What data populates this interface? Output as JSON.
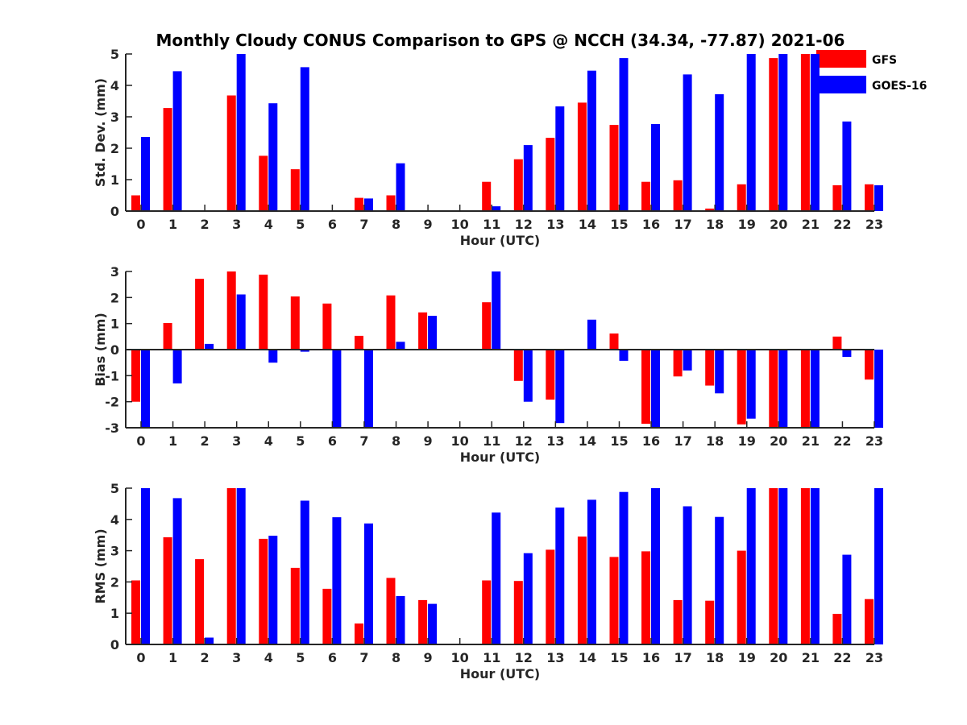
{
  "title": "Monthly Cloudy CONUS Comparison to GPS @ NCCH (34.34, -77.87) 2021-06",
  "legend": [
    {
      "name": "GFS",
      "color": "#ff0000"
    },
    {
      "name": "GOES-16",
      "color": "#0000ff"
    }
  ],
  "chart_data": [
    {
      "type": "bar",
      "ylabel": "Std. Dev. (mm)",
      "xlabel": "Hour (UTC)",
      "ylim": [
        0,
        5
      ],
      "yticks": [
        "0",
        "1",
        "2",
        "3",
        "4",
        "5"
      ],
      "categories": [
        "0",
        "1",
        "2",
        "3",
        "4",
        "5",
        "6",
        "7",
        "8",
        "9",
        "10",
        "11",
        "12",
        "13",
        "14",
        "15",
        "16",
        "17",
        "18",
        "19",
        "20",
        "21",
        "22",
        "23"
      ],
      "series": [
        {
          "name": "GFS",
          "values": [
            0.5,
            3.28,
            null,
            3.68,
            1.76,
            1.33,
            null,
            0.42,
            0.5,
            null,
            null,
            0.93,
            1.65,
            2.33,
            3.45,
            2.74,
            0.93,
            0.98,
            0.08,
            0.85,
            4.87,
            5.0,
            0.82,
            0.85
          ]
        },
        {
          "name": "GOES-16",
          "values": [
            2.36,
            4.45,
            null,
            5.0,
            3.43,
            4.58,
            null,
            0.4,
            1.52,
            null,
            null,
            0.15,
            2.1,
            3.33,
            4.47,
            4.87,
            2.77,
            4.35,
            3.72,
            5.0,
            5.0,
            5.0,
            2.85,
            0.82
          ]
        }
      ]
    },
    {
      "type": "bar",
      "ylabel": "Bias (mm)",
      "xlabel": "Hour (UTC)",
      "ylim": [
        -3,
        3
      ],
      "yticks": [
        "-3",
        "-2",
        "-1",
        "0",
        "1",
        "2",
        "3"
      ],
      "categories": [
        "0",
        "1",
        "2",
        "3",
        "4",
        "5",
        "6",
        "7",
        "8",
        "9",
        "10",
        "11",
        "12",
        "13",
        "14",
        "15",
        "16",
        "17",
        "18",
        "19",
        "20",
        "21",
        "22",
        "23"
      ],
      "series": [
        {
          "name": "GFS",
          "values": [
            -2.0,
            1.02,
            2.72,
            3.0,
            2.88,
            2.04,
            1.77,
            0.53,
            2.08,
            1.43,
            null,
            1.82,
            -1.2,
            -1.92,
            null,
            0.62,
            -2.85,
            -1.03,
            -1.38,
            -2.87,
            -3.0,
            -3.0,
            0.5,
            -1.15
          ]
        },
        {
          "name": "GOES-16",
          "values": [
            -3.0,
            -1.3,
            0.22,
            2.12,
            -0.5,
            -0.08,
            -3.0,
            -3.0,
            0.3,
            1.3,
            null,
            3.0,
            -2.0,
            -2.82,
            1.15,
            -0.43,
            -3.0,
            -0.8,
            -1.68,
            -2.65,
            -3.0,
            -3.0,
            -0.28,
            -3.0
          ]
        }
      ]
    },
    {
      "type": "bar",
      "ylabel": "RMS (mm)",
      "xlabel": "Hour (UTC)",
      "ylim": [
        0,
        5
      ],
      "yticks": [
        "0",
        "1",
        "2",
        "3",
        "4",
        "5"
      ],
      "categories": [
        "0",
        "1",
        "2",
        "3",
        "4",
        "5",
        "6",
        "7",
        "8",
        "9",
        "10",
        "11",
        "12",
        "13",
        "14",
        "15",
        "16",
        "17",
        "18",
        "19",
        "20",
        "21",
        "22",
        "23"
      ],
      "series": [
        {
          "name": "GFS",
          "values": [
            2.05,
            3.43,
            2.73,
            5.0,
            3.38,
            2.45,
            1.78,
            0.67,
            2.13,
            1.42,
            null,
            2.05,
            2.03,
            3.03,
            3.45,
            2.8,
            2.98,
            1.42,
            1.4,
            3.0,
            5.0,
            5.0,
            0.98,
            1.45
          ]
        },
        {
          "name": "GOES-16",
          "values": [
            5.0,
            4.68,
            0.22,
            5.0,
            3.48,
            4.6,
            4.07,
            3.87,
            1.55,
            1.3,
            null,
            4.22,
            2.92,
            4.38,
            4.63,
            4.88,
            5.0,
            4.42,
            4.08,
            5.0,
            5.0,
            5.0,
            2.87,
            5.0
          ]
        }
      ]
    }
  ]
}
